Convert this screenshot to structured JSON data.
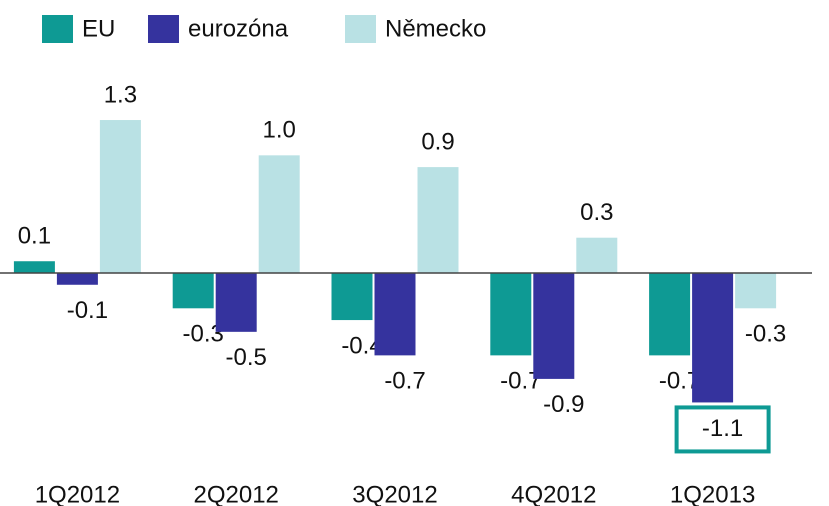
{
  "chart_data": {
    "type": "bar",
    "categories": [
      "1Q2012",
      "2Q2012",
      "3Q2012",
      "4Q2012",
      "1Q2013"
    ],
    "series": [
      {
        "name": "EU",
        "color": "#0e9a94",
        "values": [
          0.1,
          -0.3,
          -0.4,
          -0.7,
          -0.7
        ],
        "value_labels": [
          "0.1",
          "-0.3",
          "-0.4",
          "-0.7",
          "-0.7"
        ]
      },
      {
        "name": "eurozóna",
        "color": "#35339e",
        "values": [
          -0.1,
          -0.5,
          -0.7,
          -0.9,
          -1.1
        ],
        "value_labels": [
          "-0.1",
          "-0.5",
          "-0.7",
          "-0.9",
          "-1.1"
        ]
      },
      {
        "name": "Německo",
        "color": "#b9e1e4",
        "values": [
          1.3,
          1.0,
          0.9,
          0.3,
          -0.3
        ],
        "value_labels": [
          "1.3",
          "1.0",
          "0.9",
          "0.3",
          "-0.3"
        ]
      }
    ],
    "ylim": [
      -1.5,
      1.5
    ],
    "legend": "top-left"
  }
}
